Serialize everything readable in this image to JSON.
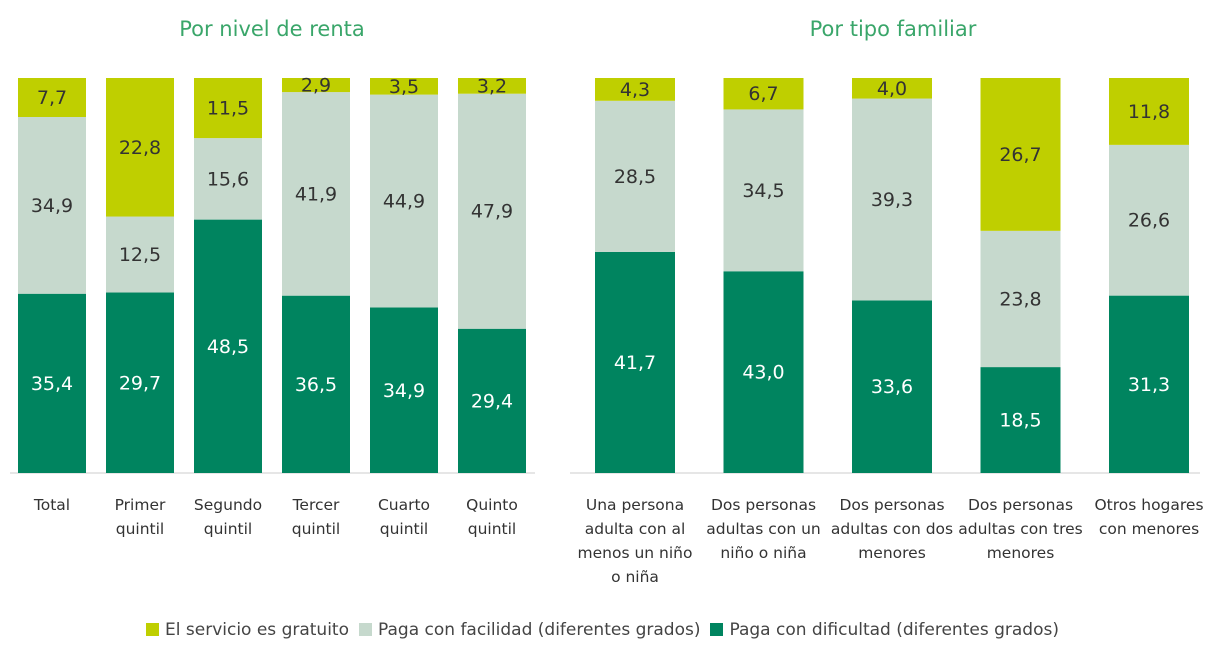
{
  "legend": [
    {
      "name": "El servicio es gratuito",
      "color": "#bfcf00"
    },
    {
      "name": "Paga con facilidad (diferentes grados)",
      "color": "#c6d9cd"
    },
    {
      "name": "Paga con dificultad (diferentes grados)",
      "color": "#00845f"
    }
  ],
  "chart_data": [
    {
      "type": "bar",
      "stacked": "percent",
      "title": "Por nivel de renta",
      "categories": [
        "Total",
        "Primer quintil",
        "Segundo quintil",
        "Tercer quintil",
        "Cuarto quintil",
        "Quinto quintil"
      ],
      "series": [
        {
          "values": [
            7.7,
            22.8,
            11.5,
            2.9,
            3.5,
            3.2
          ],
          "value_labels": [
            "7,7",
            "22,8",
            "11,5",
            "2,9",
            "3,5",
            "3,2"
          ]
        },
        {
          "values": [
            34.9,
            12.5,
            15.6,
            41.9,
            44.9,
            47.9
          ],
          "value_labels": [
            "34,9",
            "12,5",
            "15,6",
            "41,9",
            "44,9",
            "47,9"
          ]
        },
        {
          "values": [
            35.4,
            29.7,
            48.5,
            36.5,
            34.9,
            29.4
          ],
          "value_labels": [
            "35,4",
            "29,7",
            "48,5",
            "36,5",
            "34,9",
            "29,4"
          ]
        }
      ]
    },
    {
      "type": "bar",
      "stacked": "percent",
      "title": "Por tipo familiar",
      "categories": [
        "Una persona adulta con al menos un niño o niña",
        "Dos personas adultas con un niño o niña",
        "Dos personas adultas con dos menores",
        "Dos personas adultas con tres menores",
        "Otros hogares con menores"
      ],
      "series": [
        {
          "values": [
            4.3,
            6.7,
            4.0,
            26.7,
            11.8
          ],
          "value_labels": [
            "4,3",
            "6,7",
            "4,0",
            "26,7",
            "11,8"
          ]
        },
        {
          "values": [
            28.5,
            34.5,
            39.3,
            23.8,
            26.6
          ],
          "value_labels": [
            "28,5",
            "34,5",
            "39,3",
            "23,8",
            "26,6"
          ]
        },
        {
          "values": [
            41.7,
            43.0,
            33.6,
            18.5,
            31.3
          ],
          "value_labels": [
            "41,7",
            "43,0",
            "33,6",
            "18,5",
            "31,3"
          ]
        }
      ]
    }
  ]
}
